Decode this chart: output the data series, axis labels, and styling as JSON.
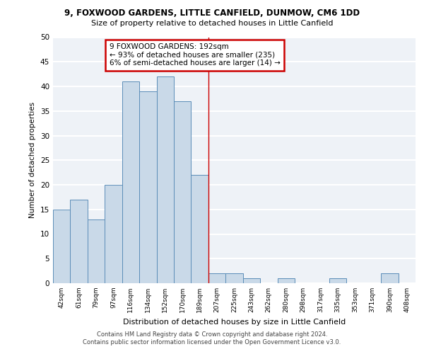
{
  "title1": "9, FOXWOOD GARDENS, LITTLE CANFIELD, DUNMOW, CM6 1DD",
  "title2": "Size of property relative to detached houses in Little Canfield",
  "xlabel": "Distribution of detached houses by size in Little Canfield",
  "ylabel": "Number of detached properties",
  "footnote": "Contains HM Land Registry data © Crown copyright and database right 2024.\nContains public sector information licensed under the Open Government Licence v3.0.",
  "bin_labels": [
    "42sqm",
    "61sqm",
    "79sqm",
    "97sqm",
    "116sqm",
    "134sqm",
    "152sqm",
    "170sqm",
    "189sqm",
    "207sqm",
    "225sqm",
    "243sqm",
    "262sqm",
    "280sqm",
    "298sqm",
    "317sqm",
    "335sqm",
    "353sqm",
    "371sqm",
    "390sqm",
    "408sqm"
  ],
  "bar_values": [
    15,
    17,
    13,
    20,
    41,
    39,
    42,
    37,
    22,
    2,
    2,
    1,
    0,
    1,
    0,
    0,
    1,
    0,
    0,
    2,
    0
  ],
  "bar_color": "#c9d9e8",
  "bar_edge_color": "#5b8db8",
  "property_line_x": 8.5,
  "annotation_text": "9 FOXWOOD GARDENS: 192sqm\n← 93% of detached houses are smaller (235)\n6% of semi-detached houses are larger (14) →",
  "annotation_box_color": "#ffffff",
  "annotation_box_edge": "#cc0000",
  "property_line_color": "#cc0000",
  "background_color": "#eef2f7",
  "grid_color": "#ffffff",
  "ylim": [
    0,
    50
  ],
  "yticks": [
    0,
    5,
    10,
    15,
    20,
    25,
    30,
    35,
    40,
    45,
    50
  ]
}
